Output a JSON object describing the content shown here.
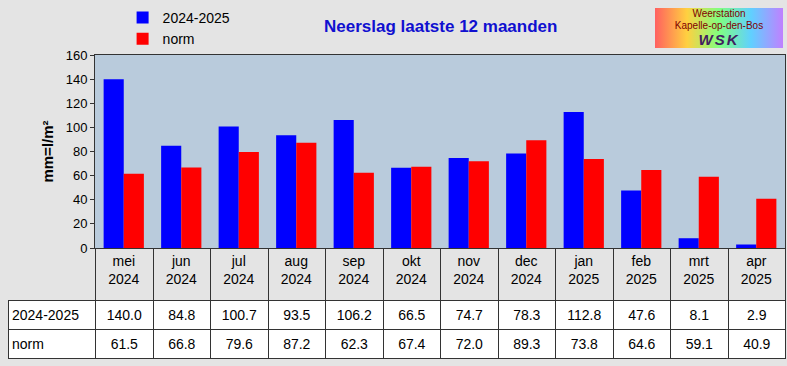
{
  "chart_data": {
    "type": "bar",
    "title": "Neerslag laatste 12 maanden",
    "y_label": "mm=l/m²",
    "annotations": [
      "Weerstation",
      "Kapelle-op-den-Bos",
      "WSK"
    ],
    "categories": [
      "mei 2024",
      "jun 2024",
      "jul 2024",
      "aug 2024",
      "sep 2024",
      "okt 2024",
      "nov 2024",
      "dec 2024",
      "jan 2025",
      "feb 2025",
      "mrt 2025",
      "apr 2025"
    ],
    "series": [
      {
        "name": "2024-2025",
        "color": "#0000ff",
        "values": [
          140.0,
          84.8,
          100.7,
          93.5,
          106.2,
          66.5,
          74.7,
          78.3,
          112.8,
          47.6,
          8.1,
          2.9
        ],
        "value_labels": [
          "140.0",
          "84.8",
          "100.7",
          "93.5",
          "106.2",
          "66.5",
          "74.7",
          "78.3",
          "112.8",
          "47.6",
          "8.1",
          "2.9"
        ]
      },
      {
        "name": "norm",
        "color": "#ff0000",
        "values": [
          61.5,
          66.8,
          79.6,
          87.2,
          62.3,
          67.4,
          72.0,
          89.3,
          73.8,
          64.6,
          59.1,
          40.9
        ],
        "value_labels": [
          "61.5",
          "66.8",
          "79.6",
          "87.2",
          "62.3",
          "67.4",
          "72.0",
          "89.3",
          "73.8",
          "64.6",
          "59.1",
          "40.9"
        ]
      }
    ],
    "ylim": [
      0,
      160
    ],
    "yticks": [
      0,
      20,
      40,
      60,
      80,
      100,
      120,
      140,
      160
    ],
    "grid": false,
    "legend": "top left"
  }
}
